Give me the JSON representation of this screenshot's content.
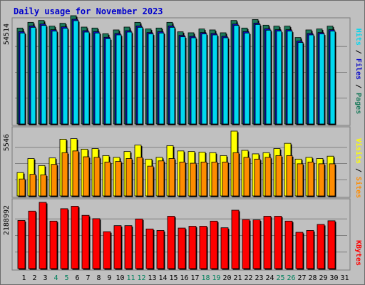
{
  "chart_data": {
    "title": "Daily usage for November 2023",
    "days": [
      "1",
      "2",
      "3",
      "4",
      "5",
      "6",
      "7",
      "8",
      "9",
      "10",
      "11",
      "12",
      "13",
      "14",
      "15",
      "16",
      "17",
      "18",
      "19",
      "20",
      "21",
      "22",
      "23",
      "24",
      "25",
      "26",
      "27",
      "28",
      "29",
      "30",
      "31"
    ],
    "weekend_days": [
      "4",
      "5",
      "11",
      "12",
      "18",
      "19",
      "25",
      "26"
    ],
    "colors": {
      "title": "#0000cc",
      "weekday_label": "#000000",
      "weekend_label": "#00805c",
      "pages": "#1b7a5b",
      "files": "#1010c8",
      "hits": "#00d8f0",
      "visits": "#ffff00",
      "sites": "#ff8c00",
      "kbytes": "#ff0000"
    },
    "panels": [
      {
        "type": "bar",
        "max_label": "54514",
        "legend": {
          "hits": "Hits",
          "files": "Files",
          "pages": "Pages",
          "sep": " / "
        },
        "series": [
          {
            "name": "Pages",
            "values": [
              1550,
              2450,
              2500,
              2150,
              2300,
              2800,
              2100,
              2050,
              1700,
              2050,
              2150,
              2500,
              1950,
              2000,
              2400,
              1850,
              1750,
              2050,
              2000,
              1800,
              2500,
              2050,
              2600,
              2200,
              2150,
              2200,
              1550,
              1950,
              1950,
              2200
            ]
          },
          {
            "name": "Files",
            "values": [
              1500,
              2000,
              2350,
              1950,
              2200,
              2550,
              1950,
              1950,
              1600,
              1900,
              2050,
              2200,
              1850,
              1950,
              2150,
              1700,
              1650,
              1900,
              1900,
              1700,
              2350,
              1950,
              2300,
              2000,
              2000,
              2000,
              1450,
              1800,
              1900,
              2000
            ]
          },
          {
            "name": "Hits",
            "values": [
              48000,
              51000,
              52000,
              49000,
              50500,
              54514,
              48500,
              48000,
              45000,
              47000,
              48500,
              51000,
              47500,
              48000,
              51000,
              46000,
              45500,
              47500,
              47000,
              45500,
              52000,
              48000,
              52500,
              49500,
              49000,
              49000,
              43000,
              47000,
              47500,
              49000
            ]
          }
        ]
      },
      {
        "type": "bar",
        "max_label": "5546",
        "legend": {
          "visits": "Visits",
          "sites": "Sites",
          "sep": " / "
        },
        "series": [
          {
            "name": "Sites",
            "values": [
              1450,
              1850,
              1800,
              2700,
              3700,
              3850,
              3350,
              3300,
              2900,
              2950,
              3200,
              3300,
              2550,
              3000,
              3200,
              2900,
              2800,
              2900,
              2900,
              2900,
              3700,
              3300,
              3150,
              3300,
              3450,
              3450,
              2750,
              2900,
              2750,
              2750
            ]
          },
          {
            "name": "Visits",
            "values": [
              2000,
              3200,
              2600,
              3250,
              4850,
              4900,
              4000,
              4050,
              3450,
              3300,
              3800,
              4350,
              3150,
              3300,
              4300,
              3850,
              3800,
              3750,
              3700,
              3450,
              5546,
              3900,
              3600,
              3700,
              4050,
              4500,
              3150,
              3300,
              3200,
              3400
            ]
          }
        ]
      },
      {
        "type": "bar",
        "max_label": "2188992",
        "legend": {
          "kbytes": "KBytes"
        },
        "series": [
          {
            "name": "KBytes",
            "values": [
              1590000,
              1900000,
              2188992,
              1570000,
              1980000,
              2060000,
              1760000,
              1650000,
              1220000,
              1420000,
              1420000,
              1640000,
              1310000,
              1260000,
              1730000,
              1340000,
              1400000,
              1400000,
              1570000,
              1350000,
              1930000,
              1620000,
              1610000,
              1730000,
              1730000,
              1570000,
              1200000,
              1260000,
              1460000,
              1580000
            ]
          }
        ]
      }
    ]
  }
}
